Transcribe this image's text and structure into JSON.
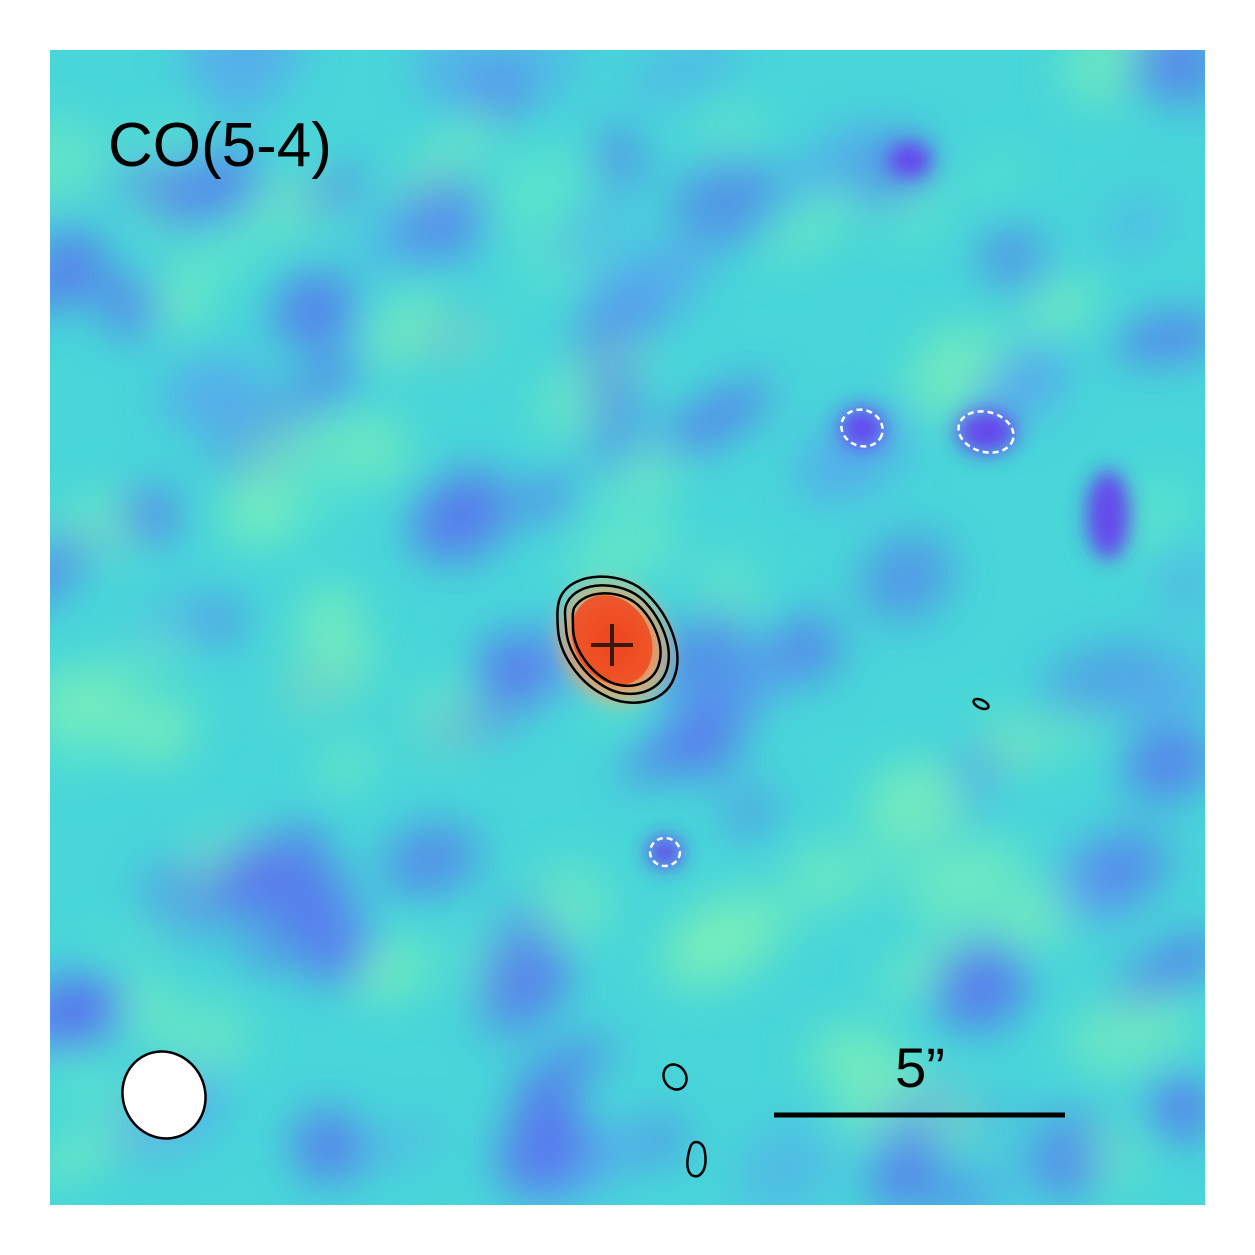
{
  "panel": {
    "line_label": "CO(5-4)",
    "scale_bar_label": "5”"
  },
  "colors": {
    "background_field": "#3fd9d6",
    "low_noise": "#5a6cf0",
    "deep_negative": "#6a2ff0",
    "high_noise": "#7cf0b8",
    "source_core": "#e8311c",
    "source_halo": "#f7a060",
    "positive_contour": "#000000",
    "negative_contour": "#ffffff",
    "beam": "#ffffff",
    "marker": "#3a1a10"
  },
  "icons": {
    "marker": "cross-marker-icon",
    "beam": "beam-ellipse-icon"
  }
}
